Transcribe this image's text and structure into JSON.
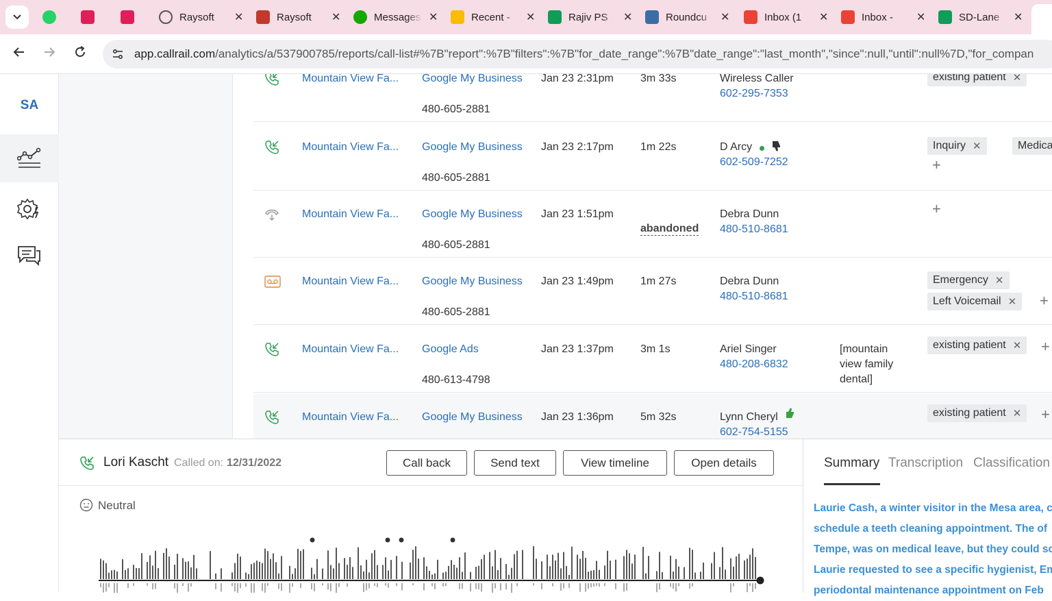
{
  "tabs": [
    {
      "title": "",
      "icon": "whatsapp-icon",
      "color": "#25d366"
    },
    {
      "title": "",
      "icon": "slack-icon",
      "color": "#e01e5a"
    },
    {
      "title": "",
      "icon": "slack-icon",
      "color": "#e01e5a"
    },
    {
      "title": "Raysoft",
      "icon": "globe-icon",
      "color": "#555555"
    },
    {
      "title": "Raysoft",
      "icon": "raysoft-icon",
      "color": "#c0392b"
    },
    {
      "title": "Messages",
      "icon": "upwork-icon",
      "color": "#14a800"
    },
    {
      "title": "Recent -",
      "icon": "drive-icon",
      "color": "#fbbc04"
    },
    {
      "title": "Rajiv PS",
      "icon": "sheets-icon",
      "color": "#0f9d58"
    },
    {
      "title": "Roundcu",
      "icon": "roundcube-icon",
      "color": "#3b6ea5"
    },
    {
      "title": "Inbox (1",
      "icon": "gmail-icon",
      "color": "#ea4335"
    },
    {
      "title": "Inbox -",
      "icon": "gmail-icon",
      "color": "#ea4335"
    },
    {
      "title": "SD-Lane",
      "icon": "sheets-icon",
      "color": "#0f9d58"
    }
  ],
  "address_bar": {
    "domain": "app.callrail.com",
    "path": "/analytics/a/537900785/reports/call-list#%7B\"report\":%7B\"filters\":%7B\"for_date_range\":%7B\"date_range\":\"last_month\",\"since\":null,\"until\":null%7D,\"for_compan"
  },
  "rail": {
    "initials": "SA",
    "items": [
      "analytics-icon",
      "settings-automation-icon",
      "conversations-icon"
    ]
  },
  "calls": [
    {
      "status": "answered",
      "company": "Mountain View Fa...",
      "source": "Google My Business",
      "tracking": "480-605-2881",
      "date": "Jan 23 2:31pm",
      "duration": "3m 33s",
      "caller": "Wireless Caller",
      "caller_phone": "602-295-7353",
      "keywords": "",
      "tags": [
        "existing patient"
      ]
    },
    {
      "status": "answered",
      "company": "Mountain View Fa...",
      "source": "Google My Business",
      "tracking": "480-605-2881",
      "date": "Jan 23 2:17pm",
      "duration": "1m 22s",
      "caller": "D Arcy",
      "caller_phone": "602-509-7252",
      "keywords": "",
      "tags": [
        "Inquiry",
        "Medicaid"
      ]
    },
    {
      "status": "abandoned",
      "company": "Mountain View Fa...",
      "source": "Google My Business",
      "tracking": "480-605-2881",
      "date": "Jan 23 1:51pm",
      "duration": "abandoned",
      "caller": "Debra Dunn",
      "caller_phone": "480-510-8681",
      "keywords": "",
      "tags": []
    },
    {
      "status": "voicemail",
      "company": "Mountain View Fa...",
      "source": "Google My Business",
      "tracking": "480-605-2881",
      "date": "Jan 23 1:49pm",
      "duration": "1m 27s",
      "caller": "Debra Dunn",
      "caller_phone": "480-510-8681",
      "keywords": "",
      "tags": [
        "Emergency",
        "Left Voicemail"
      ]
    },
    {
      "status": "answered",
      "company": "Mountain View Fa...",
      "source": "Google Ads",
      "tracking": "480-613-4798",
      "date": "Jan 23 1:37pm",
      "duration": "3m 1s",
      "caller": "Ariel Singer",
      "caller_phone": "480-208-6832",
      "keywords_lines": [
        "[mountain",
        "view family",
        "dental]"
      ],
      "tags": [
        "existing patient"
      ]
    },
    {
      "status": "answered",
      "company": "Mountain View Fa...",
      "source": "Google My Business",
      "tracking": "",
      "date": "Jan 23 1:36pm",
      "duration": "5m 32s",
      "caller": "Lynn Cheryl",
      "caller_phone": "602-754-5155",
      "keywords": "",
      "tags": [
        "existing patient"
      ]
    }
  ],
  "detail": {
    "caller_name": "Lori Kascht",
    "called_on_label": "Called on:",
    "called_on_date": "12/31/2022",
    "buttons": {
      "call_back": "Call back",
      "send_text": "Send text",
      "view_timeline": "View timeline",
      "open_details": "Open details"
    },
    "sentiment": "Neutral",
    "tabs": {
      "summary": "Summary",
      "transcription": "Transcription",
      "classification": "Classification"
    },
    "summary_lines": [
      "Laurie Cash, a winter visitor in the Mesa area, c",
      "schedule a teeth cleaning appointment. The of",
      "Tempe, was on medical leave, but they could sc",
      "Laurie requested to see a specific hygienist, Em",
      "periodontal maintenance appointment on Feb"
    ],
    "accent_color": "#3a8fd8"
  }
}
